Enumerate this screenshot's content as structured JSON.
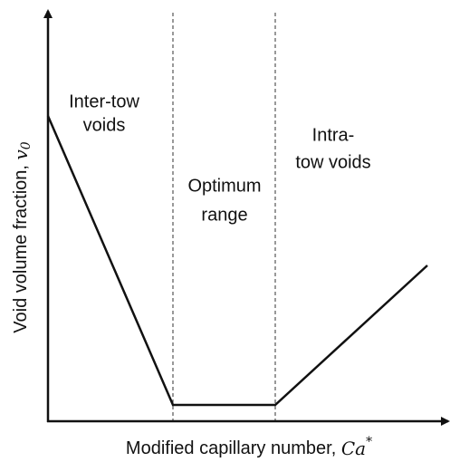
{
  "regions": [
    {
      "lines": [
        "Inter-tow",
        "voids"
      ]
    },
    {
      "lines": [
        "Optimum",
        "range"
      ]
    },
    {
      "lines": [
        "Intra-",
        "tow voids"
      ]
    }
  ],
  "x_label": {
    "text": "Modified capillary number,",
    "symbol": "Ca",
    "superscript": "*"
  },
  "y_label": {
    "text": "Void volume fraction,",
    "symbol": "v",
    "subscript": "0"
  }
}
